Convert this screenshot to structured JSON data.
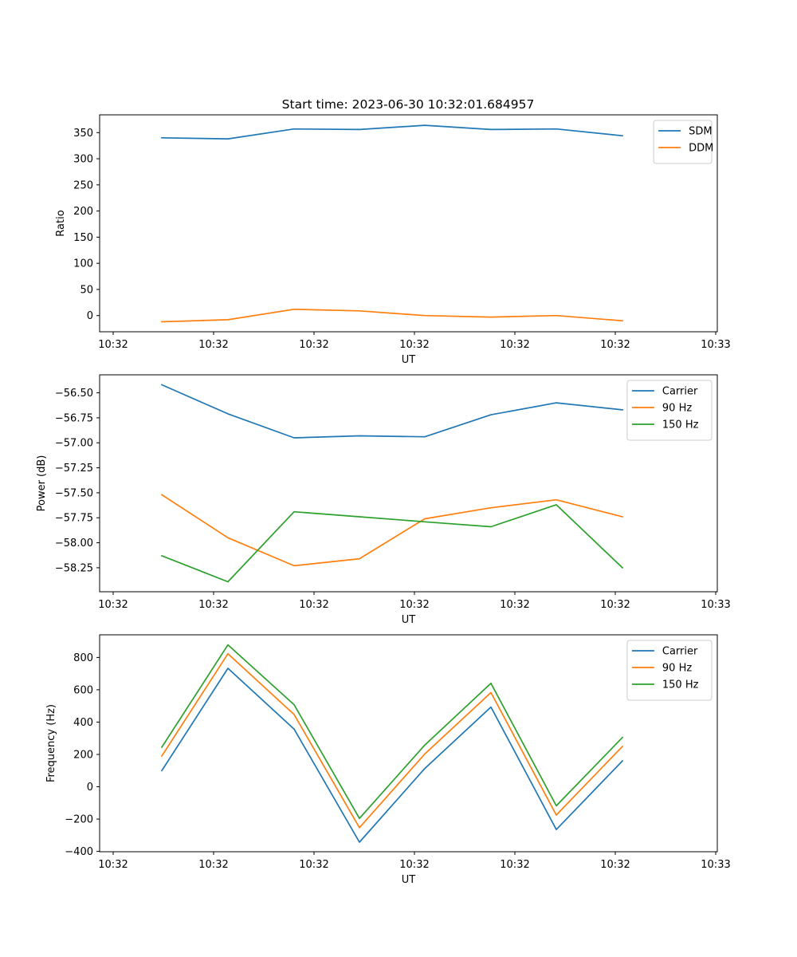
{
  "title": "Start time: 2023-06-30 10:32:01.684957",
  "colors": {
    "series1": "#1f77b4",
    "series2": "#ff7f0e",
    "series3": "#2ca02c",
    "legend_border": "#cccccc",
    "axes": "#000000"
  },
  "chart_data": [
    {
      "type": "line",
      "title": "Start time: 2023-06-30 10:32:01.684957",
      "xlabel": "UT",
      "ylabel": "Ratio",
      "x_tick_labels": [
        "10:32",
        "10:32",
        "10:32",
        "10:32",
        "10:32",
        "10:32",
        "10:32"
      ],
      "y_ticks": [
        0,
        50,
        100,
        150,
        200,
        250,
        300,
        350
      ],
      "y_tick_labels": [
        "0",
        "50",
        "100",
        "150",
        "200",
        "250",
        "300",
        "350"
      ],
      "ylim": [
        -31,
        384
      ],
      "legend_position": "top-right",
      "grid": false,
      "series": [
        {
          "name": "SDM",
          "values": [
            340,
            338,
            357,
            356,
            364,
            356,
            357,
            344
          ]
        },
        {
          "name": "DDM",
          "values": [
            -12,
            -8,
            12,
            9,
            0,
            -3,
            0,
            -10
          ]
        }
      ]
    },
    {
      "type": "line",
      "xlabel": "UT",
      "ylabel": "Power (dB)",
      "x_tick_labels": [
        "10:32",
        "10:32",
        "10:32",
        "10:32",
        "10:32",
        "10:32",
        "10:32"
      ],
      "y_ticks": [
        -56.5,
        -56.75,
        -57.0,
        -57.25,
        -57.5,
        -57.75,
        -58.0,
        -58.25
      ],
      "y_tick_labels": [
        "−56.50",
        "−56.75",
        "−57.00",
        "−57.25",
        "−57.50",
        "−57.75",
        "−58.00",
        "−58.25"
      ],
      "ylim": [
        -58.49,
        -56.32
      ],
      "legend_position": "top-right",
      "grid": false,
      "series": [
        {
          "name": "Carrier",
          "values": [
            -56.42,
            -56.71,
            -56.95,
            -56.93,
            -56.94,
            -56.72,
            -56.6,
            -56.67
          ]
        },
        {
          "name": "90 Hz",
          "values": [
            -57.52,
            -57.95,
            -58.23,
            -58.16,
            -57.76,
            -57.65,
            -57.57,
            -57.74
          ]
        },
        {
          "name": "150 Hz",
          "values": [
            -58.13,
            -58.39,
            -57.69,
            -57.74,
            -57.79,
            -57.84,
            -57.62,
            -58.25
          ]
        }
      ]
    },
    {
      "type": "line",
      "xlabel": "UT",
      "ylabel": "Frequency (Hz)",
      "x_tick_labels": [
        "10:32",
        "10:32",
        "10:32",
        "10:32",
        "10:32",
        "10:32",
        "10:32"
      ],
      "y_ticks": [
        -400,
        -200,
        0,
        200,
        400,
        600,
        800
      ],
      "y_tick_labels": [
        "−400",
        "−200",
        "0",
        "200",
        "400",
        "600",
        "800"
      ],
      "ylim": [
        -402,
        940
      ],
      "legend_position": "top-right",
      "grid": false,
      "series": [
        {
          "name": "Carrier",
          "values": [
            100,
            733,
            357,
            -343,
            113,
            493,
            -265,
            160
          ]
        },
        {
          "name": "90 Hz",
          "values": [
            190,
            823,
            447,
            -253,
            203,
            583,
            -175,
            250
          ]
        },
        {
          "name": "150 Hz",
          "values": [
            245,
            878,
            508,
            -196,
            258,
            640,
            -118,
            305
          ]
        }
      ]
    }
  ],
  "x_axis": {
    "tick_labels": [
      "10:32",
      "10:32",
      "10:32",
      "10:32",
      "10:32",
      "10:32",
      "10:33"
    ]
  }
}
